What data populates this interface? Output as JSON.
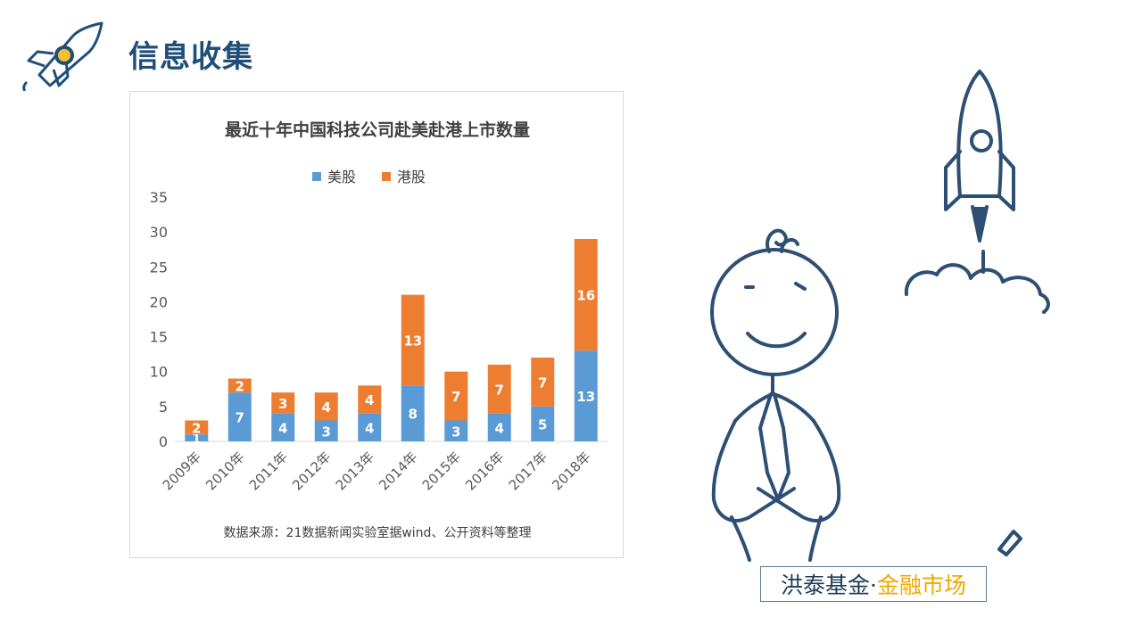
{
  "slide": {
    "title": "信息收集"
  },
  "brand": {
    "name": "洪泰基金·",
    "sub": "金融市场"
  },
  "colors": {
    "title": "#1f4e79",
    "us": "#5b9bd5",
    "hk": "#ed7d31",
    "doodle": "#2e4f74"
  },
  "chart_data": {
    "type": "bar",
    "stacked": true,
    "title": "最近十年中国科技公司赴美赴港上市数量",
    "categories": [
      "2009年",
      "2010年",
      "2011年",
      "2012年",
      "2013年",
      "2014年",
      "2015年",
      "2016年",
      "2017年",
      "2018年"
    ],
    "series": [
      {
        "name": "美股",
        "values": [
          1,
          7,
          4,
          3,
          4,
          8,
          3,
          4,
          5,
          13
        ],
        "color": "#5b9bd5"
      },
      {
        "name": "港股",
        "values": [
          2,
          2,
          3,
          4,
          4,
          13,
          7,
          7,
          7,
          16
        ],
        "color": "#ed7d31"
      }
    ],
    "ylim": [
      0,
      35
    ],
    "yticks": [
      0,
      5,
      10,
      15,
      20,
      25,
      30,
      35
    ],
    "legend_position": "top-center",
    "grid": false,
    "source": "数据来源：21数据新闻实验室据wind、公开资料等整理"
  }
}
